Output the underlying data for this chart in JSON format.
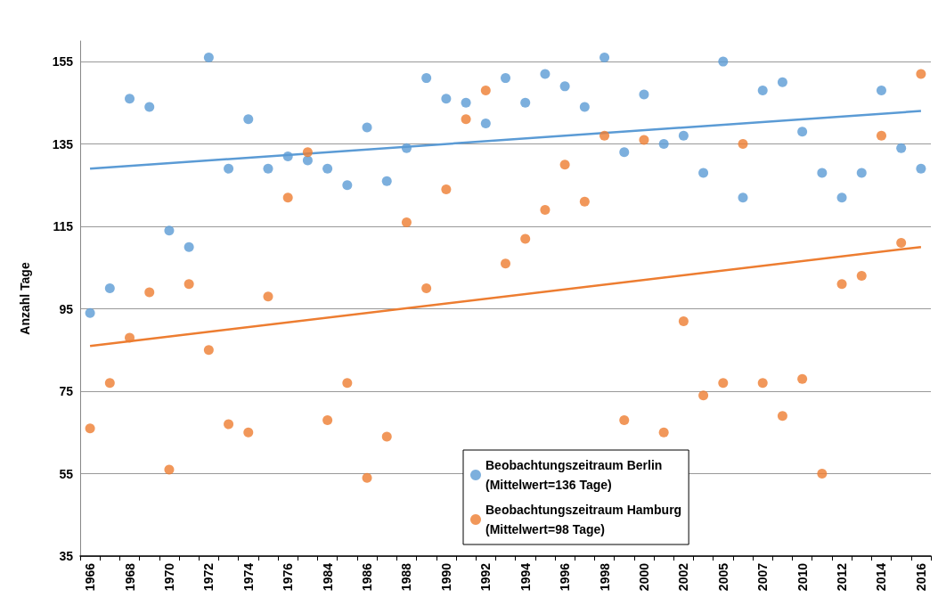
{
  "chart_data": {
    "type": "scatter",
    "ylabel": "Anzahl Tage",
    "categories": [
      "1966",
      null,
      "1968",
      null,
      "1970",
      null,
      "1972",
      null,
      "1974",
      null,
      "1976",
      null,
      "1984",
      null,
      "1986",
      null,
      "1988",
      null,
      "1990",
      null,
      "1992",
      null,
      "1994",
      null,
      "1996",
      null,
      "1998",
      null,
      "2000",
      null,
      "2002",
      null,
      "2005",
      null,
      "2007",
      null,
      "2010",
      null,
      "2012",
      null,
      "2014",
      null,
      "2016"
    ],
    "series": [
      {
        "name": "Beobachtungszeitraum Berlin\n(Mittelwert=136 Tage)",
        "color": "#5b9bd5",
        "values": [
          94,
          100,
          146,
          144,
          114,
          110,
          156,
          129,
          141,
          129,
          132,
          131,
          129,
          125,
          139,
          126,
          134,
          151,
          146,
          145,
          140,
          151,
          145,
          152,
          149,
          144,
          156,
          133,
          147,
          135,
          137,
          128,
          155,
          122,
          148,
          150,
          138,
          128,
          122,
          128,
          148,
          134,
          129
        ]
      },
      {
        "name": "Beobachtungszeitraum Hamburg\n(Mittelwert=98 Tage)",
        "color": "#ed7d31",
        "values": [
          66,
          77,
          88,
          99,
          56,
          101,
          85,
          67,
          65,
          98,
          122,
          133,
          68,
          77,
          54,
          64,
          116,
          100,
          124,
          141,
          148,
          106,
          112,
          119,
          130,
          121,
          137,
          68,
          136,
          65,
          92,
          74,
          77,
          135,
          77,
          69,
          78,
          55,
          101,
          103,
          137,
          111,
          152
        ]
      },
      {
        "type": "line",
        "color": "#5b9bd5",
        "marker": "none",
        "values": [
          129,
          null,
          null,
          null,
          null,
          null,
          null,
          null,
          null,
          null,
          null,
          null,
          null,
          null,
          null,
          null,
          null,
          null,
          null,
          null,
          null,
          null,
          null,
          null,
          null,
          null,
          null,
          null,
          null,
          null,
          null,
          null,
          null,
          null,
          null,
          null,
          null,
          null,
          null,
          null,
          null,
          null,
          143
        ]
      },
      {
        "type": "line",
        "color": "#ed7d31",
        "marker": "none",
        "values": [
          86,
          null,
          null,
          null,
          null,
          null,
          null,
          null,
          null,
          null,
          null,
          null,
          null,
          null,
          null,
          null,
          null,
          null,
          null,
          null,
          null,
          null,
          null,
          null,
          null,
          null,
          null,
          null,
          null,
          null,
          null,
          null,
          null,
          null,
          null,
          null,
          null,
          null,
          null,
          null,
          null,
          null,
          110
        ]
      }
    ],
    "ylim": [
      35,
      160
    ],
    "yticks": [
      35,
      55,
      75,
      95,
      115,
      135,
      155
    ],
    "grid": "y",
    "legend": "bottom",
    "marker": "circle"
  }
}
